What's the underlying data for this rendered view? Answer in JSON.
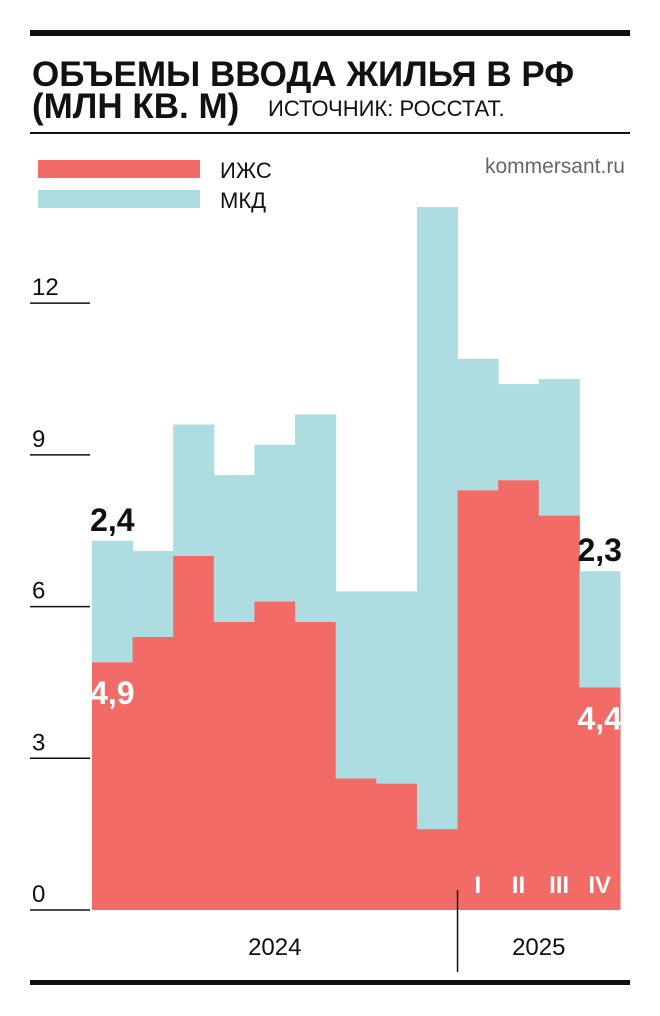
{
  "chart_data": {
    "type": "bar",
    "stacked": true,
    "title": "ОБЪЕМЫ ВВОДА ЖИЛЬЯ В РФ",
    "title_line2": "(МЛН КВ. М)",
    "subtitle": "ИСТОЧНИК: РОССТАТ.",
    "source": "kommersant.ru",
    "categories": [
      null,
      null,
      null,
      null,
      null,
      null,
      null,
      null,
      null,
      "I",
      "II",
      "III",
      "IV"
    ],
    "groups": [
      "2024",
      "2025"
    ],
    "series": [
      {
        "name": "ИЖС",
        "color": "#f26b66",
        "values": [
          4.9,
          5.4,
          7.0,
          5.7,
          6.1,
          5.7,
          2.6,
          2.5,
          1.6,
          8.3,
          8.5,
          7.8,
          4.4
        ],
        "value_labels": [
          "4,9",
          null,
          null,
          null,
          null,
          null,
          null,
          null,
          null,
          null,
          null,
          null,
          "4,4"
        ]
      },
      {
        "name": "МКД",
        "color": "#addde1",
        "values": [
          2.4,
          1.7,
          2.6,
          2.9,
          3.1,
          4.1,
          3.7,
          3.8,
          12.3,
          2.6,
          1.9,
          2.7,
          2.3
        ],
        "value_labels": [
          "2,4",
          null,
          null,
          null,
          null,
          null,
          null,
          null,
          null,
          null,
          null,
          null,
          "2,3"
        ]
      }
    ],
    "ylim": [
      0,
      14
    ],
    "yticks": [
      0,
      3,
      6,
      9,
      12
    ]
  }
}
